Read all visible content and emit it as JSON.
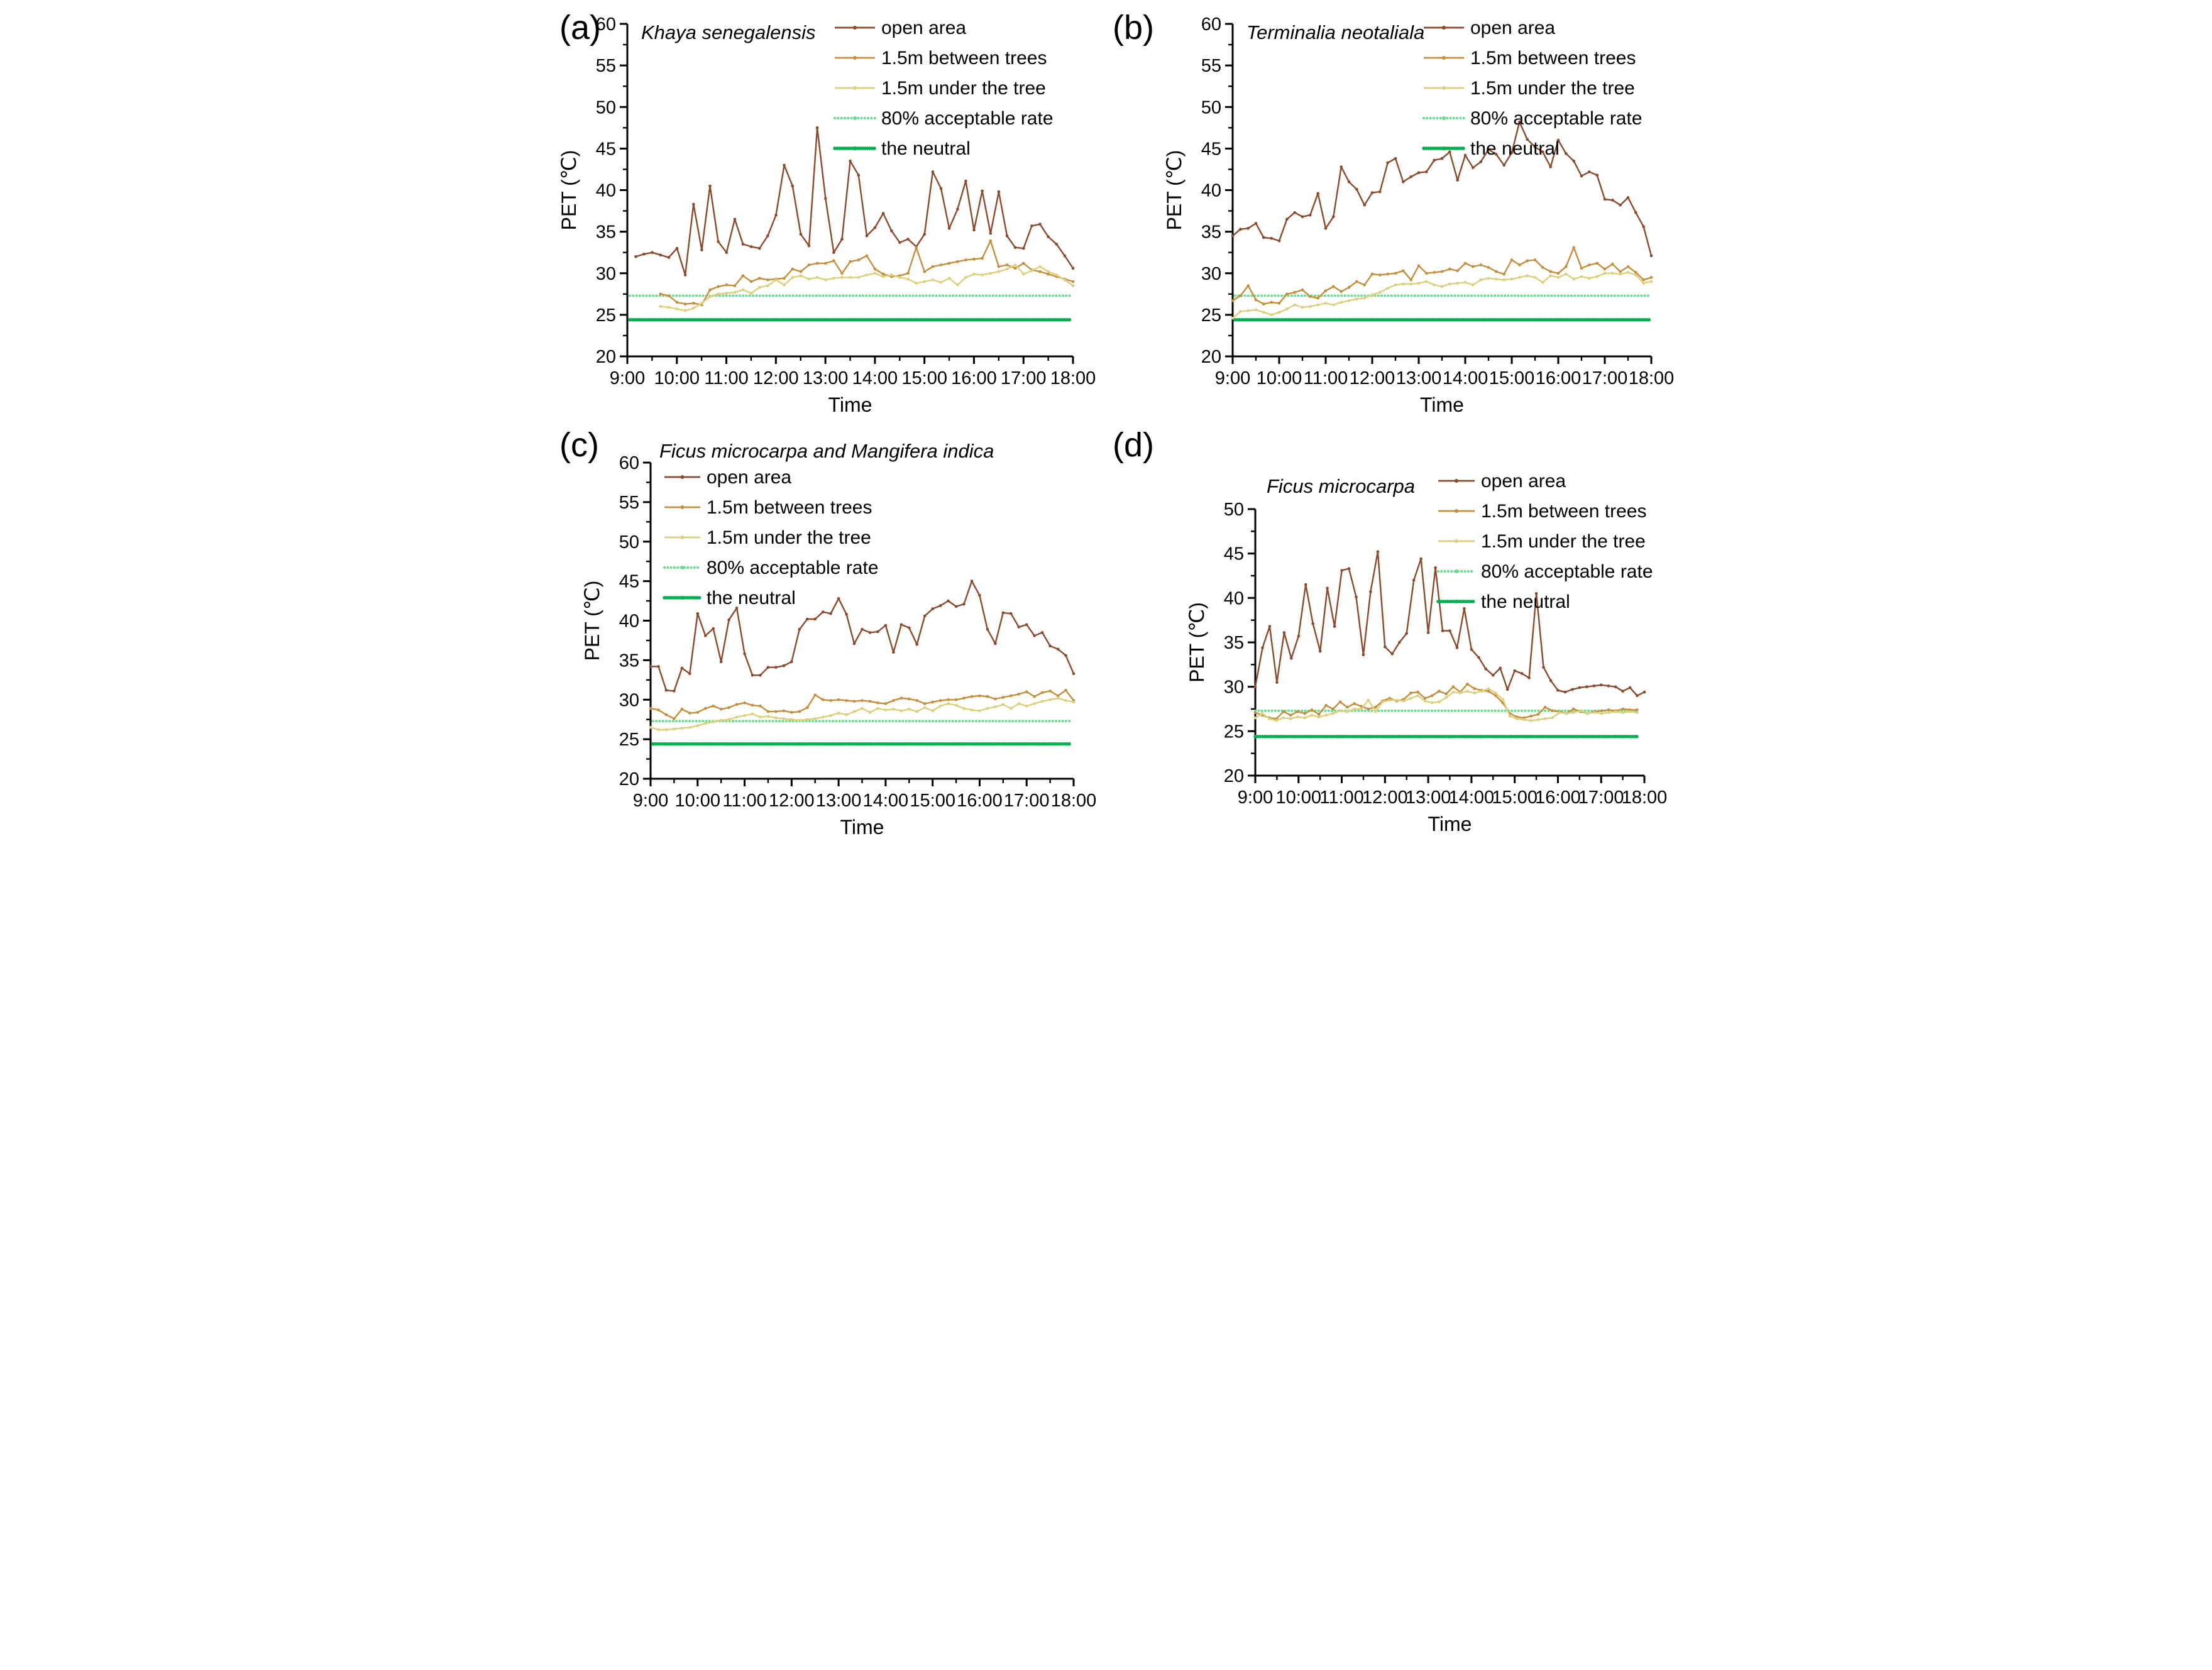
{
  "figure": {
    "background": "#ffffff",
    "axis_color": "#000000",
    "text_color": "#000000"
  },
  "chart_data": [
    {
      "id": "a",
      "panel_label": "(a)",
      "type": "line",
      "title": "Khaya senegalensis",
      "xlabel": "Time",
      "ylabel": "PET (℃)",
      "ylim": [
        20,
        60
      ],
      "ytick_step": 5,
      "yminor_step": 2.5,
      "xlim": [
        9,
        18
      ],
      "xtick_labels": [
        "9:00",
        "10:00",
        "11:00",
        "12:00",
        "13:00",
        "14:00",
        "15:00",
        "16:00",
        "17:00",
        "18:00"
      ],
      "legend_position": "inside-top-center",
      "legend": [
        "open area",
        "1.5m between trees",
        "1.5m under the tree",
        "80% acceptable rate",
        "the neutral"
      ],
      "series": [
        {
          "name": "open area",
          "color": "#8B4A2B",
          "x_start": 9.17,
          "x_end": 18.0,
          "values": [
            32.0,
            32.3,
            32.5,
            32.2,
            31.9,
            33.0,
            29.8,
            38.3,
            32.8,
            40.5,
            33.8,
            32.5,
            36.5,
            33.5,
            33.2,
            33.0,
            34.5,
            37.0,
            43.0,
            40.5,
            34.7,
            33.3,
            47.5,
            39.0,
            32.5,
            34.1,
            43.5,
            41.8,
            34.5,
            35.5,
            37.2,
            35.1,
            33.7,
            34.1,
            33.2,
            34.7,
            42.2,
            40.2,
            35.4,
            37.7,
            41.1,
            35.2,
            39.9,
            34.8,
            39.8,
            34.5,
            33.1,
            33.0,
            35.7,
            35.9,
            34.4,
            33.5,
            32.1,
            30.6
          ]
        },
        {
          "name": "1.5m between trees",
          "color": "#C48E3C",
          "x_start": 9.67,
          "x_end": 18.0,
          "values": [
            27.5,
            27.3,
            26.5,
            26.3,
            26.4,
            26.2,
            28.0,
            28.4,
            28.6,
            28.5,
            29.7,
            29.0,
            29.4,
            29.2,
            29.3,
            29.4,
            30.5,
            30.2,
            31.0,
            31.2,
            31.2,
            31.5,
            30.0,
            31.4,
            31.6,
            32.1,
            30.5,
            29.9,
            29.6,
            29.7,
            30.0,
            33.1,
            30.2,
            30.8,
            31.0,
            31.2,
            31.4,
            31.6,
            31.7,
            31.8,
            33.9,
            30.8,
            31.0,
            30.6,
            31.2,
            30.4,
            30.2,
            29.9,
            29.6,
            29.3,
            29.0
          ]
        },
        {
          "name": "1.5m under the tree",
          "color": "#DCCF7E",
          "x_start": 9.67,
          "x_end": 18.0,
          "values": [
            26.0,
            25.9,
            25.7,
            25.5,
            25.8,
            26.4,
            27.2,
            27.5,
            27.6,
            27.7,
            28.0,
            27.6,
            28.3,
            28.5,
            29.2,
            28.6,
            29.5,
            29.7,
            29.3,
            29.5,
            29.2,
            29.4,
            29.5,
            29.5,
            29.5,
            29.8,
            30.0,
            29.6,
            29.8,
            29.5,
            29.3,
            28.8,
            29.0,
            29.2,
            28.9,
            29.4,
            28.6,
            29.5,
            29.9,
            29.8,
            30.0,
            30.2,
            30.5,
            31.0,
            29.9,
            30.3,
            30.8,
            30.2,
            29.8,
            29.2,
            28.5
          ]
        }
      ],
      "ref_lines": [
        {
          "name": "80% acceptable rate",
          "color": "#68DE8F",
          "value": 27.3,
          "style": "dotted",
          "width": 4,
          "x_start": 9.05,
          "x_end": 17.95
        },
        {
          "name": "the neutral",
          "color": "#00B050",
          "value": 24.4,
          "style": "dotted",
          "width": 5.5,
          "x_start": 9.05,
          "x_end": 17.95
        }
      ]
    },
    {
      "id": "b",
      "panel_label": "(b)",
      "type": "line",
      "title": "Terminalia neotaliala",
      "xlabel": "Time",
      "ylabel": "PET (℃)",
      "ylim": [
        20,
        60
      ],
      "ytick_step": 5,
      "yminor_step": 2.5,
      "xlim": [
        9,
        18
      ],
      "xtick_labels": [
        "9:00",
        "10:00",
        "11:00",
        "12:00",
        "13:00",
        "14:00",
        "15:00",
        "16:00",
        "17:00",
        "18:00"
      ],
      "legend_position": "inside-top-right",
      "legend": [
        "open area",
        "1.5m between trees",
        "1.5m under the tree",
        "80% acceptable rate",
        "the neutral"
      ],
      "series": [
        {
          "name": "open area",
          "color": "#8B4A2B",
          "x_start": 9.0,
          "x_end": 18.0,
          "values": [
            34.5,
            35.3,
            35.4,
            36.0,
            34.3,
            34.2,
            33.9,
            36.5,
            37.3,
            36.8,
            37.0,
            39.6,
            35.4,
            36.8,
            42.8,
            41.0,
            40.1,
            38.2,
            39.7,
            39.8,
            43.3,
            43.8,
            41.0,
            41.6,
            42.1,
            42.2,
            43.6,
            43.8,
            44.6,
            41.2,
            44.2,
            42.7,
            43.4,
            44.9,
            44.3,
            43.0,
            44.5,
            48.2,
            46.1,
            45.2,
            44.6,
            42.8,
            46.0,
            44.4,
            43.5,
            41.7,
            42.2,
            41.8,
            38.9,
            38.8,
            38.2,
            39.1,
            37.3,
            35.6,
            32.1
          ]
        },
        {
          "name": "1.5m between trees",
          "color": "#C48E3C",
          "x_start": 9.0,
          "x_end": 18.0,
          "values": [
            26.7,
            27.3,
            28.5,
            26.8,
            26.3,
            26.5,
            26.4,
            27.5,
            27.7,
            28.0,
            27.2,
            27.0,
            27.9,
            28.4,
            27.8,
            28.3,
            29.0,
            28.6,
            29.9,
            29.8,
            29.9,
            30.0,
            30.3,
            29.2,
            30.9,
            30.0,
            30.1,
            30.2,
            30.5,
            30.3,
            31.2,
            30.8,
            31.0,
            30.7,
            30.2,
            29.9,
            31.6,
            31.0,
            31.5,
            31.6,
            30.7,
            30.2,
            30.0,
            30.8,
            33.1,
            30.6,
            31.0,
            31.2,
            30.5,
            31.1,
            30.2,
            30.8,
            30.1,
            29.2,
            29.5
          ]
        },
        {
          "name": "1.5m under the tree",
          "color": "#DCCF7E",
          "x_start": 9.0,
          "x_end": 18.0,
          "values": [
            24.6,
            25.4,
            25.5,
            25.6,
            25.3,
            25.0,
            25.3,
            25.7,
            26.2,
            25.9,
            26.0,
            26.2,
            26.4,
            26.2,
            26.5,
            26.7,
            26.9,
            27.0,
            27.4,
            27.7,
            28.2,
            28.6,
            28.7,
            28.7,
            28.8,
            29.0,
            28.6,
            28.4,
            28.7,
            28.8,
            28.9,
            28.6,
            29.2,
            29.4,
            29.3,
            29.2,
            29.3,
            29.5,
            29.7,
            29.5,
            28.9,
            29.7,
            29.5,
            29.9,
            29.3,
            29.6,
            29.4,
            29.6,
            30.0,
            30.0,
            29.9,
            30.1,
            29.8,
            28.8,
            29.0
          ]
        }
      ],
      "ref_lines": [
        {
          "name": "80% acceptable rate",
          "color": "#68DE8F",
          "value": 27.3,
          "style": "dotted",
          "width": 4,
          "x_start": 9.05,
          "x_end": 17.95
        },
        {
          "name": "the neutral",
          "color": "#00B050",
          "value": 24.4,
          "style": "dotted",
          "width": 5.5,
          "x_start": 9.05,
          "x_end": 17.95
        }
      ]
    },
    {
      "id": "c",
      "panel_label": "(c)",
      "type": "line",
      "title": "Ficus microcarpa and Mangifera indica",
      "xlabel": "Time",
      "ylabel": "PET (℃)",
      "ylim": [
        20,
        60
      ],
      "ytick_step": 5,
      "yminor_step": 2.5,
      "xlim": [
        9,
        18
      ],
      "xtick_labels": [
        "9:00",
        "10:00",
        "11:00",
        "12:00",
        "13:00",
        "14:00",
        "15:00",
        "16:00",
        "17:00",
        "18:00"
      ],
      "legend_position": "inside-top-left",
      "legend": [
        "open area",
        "1.5m between trees",
        "1.5m under the tree",
        "80% acceptable rate",
        "the neutral"
      ],
      "series": [
        {
          "name": "open area",
          "color": "#8B4A2B",
          "x_start": 9.0,
          "x_end": 18.0,
          "values": [
            34.2,
            34.2,
            31.2,
            31.1,
            34.0,
            33.3,
            40.9,
            38.1,
            39.0,
            34.8,
            40.1,
            41.6,
            35.8,
            33.1,
            33.1,
            34.1,
            34.1,
            34.3,
            34.8,
            38.9,
            40.2,
            40.2,
            41.1,
            40.9,
            42.8,
            40.8,
            37.1,
            38.9,
            38.5,
            38.6,
            39.4,
            36.0,
            39.5,
            39.1,
            37.0,
            40.6,
            41.5,
            41.9,
            42.5,
            41.8,
            42.1,
            45.0,
            43.2,
            38.9,
            37.1,
            41.0,
            40.9,
            39.2,
            39.5,
            38.1,
            38.5,
            36.8,
            36.4,
            35.6,
            33.3
          ]
        },
        {
          "name": "1.5m between trees",
          "color": "#C48E3C",
          "x_start": 9.0,
          "x_end": 18.0,
          "values": [
            28.9,
            28.7,
            28.1,
            27.6,
            28.8,
            28.3,
            28.4,
            28.9,
            29.2,
            28.8,
            29.0,
            29.4,
            29.6,
            29.3,
            29.2,
            28.5,
            28.5,
            28.6,
            28.4,
            28.5,
            29.0,
            30.6,
            30.0,
            29.9,
            30.0,
            29.9,
            29.8,
            29.9,
            29.8,
            29.6,
            29.5,
            29.9,
            30.2,
            30.1,
            29.9,
            29.5,
            29.7,
            29.9,
            30.0,
            30.0,
            30.2,
            30.4,
            30.5,
            30.4,
            30.1,
            30.3,
            30.5,
            30.7,
            31.0,
            30.4,
            30.9,
            31.1,
            30.5,
            31.2,
            29.9
          ]
        },
        {
          "name": "1.5m under the tree",
          "color": "#DCCF7E",
          "x_start": 9.0,
          "x_end": 18.0,
          "values": [
            26.5,
            26.2,
            26.2,
            26.3,
            26.4,
            26.5,
            26.7,
            27.0,
            27.2,
            27.4,
            27.5,
            27.8,
            28.0,
            28.2,
            27.8,
            27.9,
            27.7,
            27.6,
            27.5,
            27.4,
            27.5,
            27.6,
            27.8,
            28.0,
            28.3,
            28.1,
            28.5,
            28.9,
            28.4,
            28.9,
            28.7,
            28.8,
            28.6,
            28.8,
            28.5,
            29.0,
            28.6,
            29.2,
            29.5,
            29.3,
            28.9,
            28.7,
            28.6,
            28.9,
            29.1,
            29.4,
            28.9,
            29.5,
            29.2,
            29.5,
            29.8,
            30.0,
            30.2,
            29.9,
            29.7
          ]
        }
      ],
      "ref_lines": [
        {
          "name": "80% acceptable rate",
          "color": "#68DE8F",
          "value": 27.3,
          "style": "dotted",
          "width": 4,
          "x_start": 9.05,
          "x_end": 17.95
        },
        {
          "name": "the neutral",
          "color": "#00B050",
          "value": 24.4,
          "style": "dotted",
          "width": 5.5,
          "x_start": 9.05,
          "x_end": 17.95
        }
      ]
    },
    {
      "id": "d",
      "panel_label": "(d)",
      "type": "line",
      "title": "Ficus microcarpa",
      "xlabel": "Time",
      "ylabel": "PET (℃)",
      "ylim": [
        20,
        50
      ],
      "ytick_step": 5,
      "yminor_step": 2.5,
      "xlim": [
        9,
        18
      ],
      "xtick_labels": [
        "9:00",
        "10:00",
        "11:00",
        "12:00",
        "13:00",
        "14:00",
        "15:00",
        "16:00",
        "17:00",
        "18:00"
      ],
      "legend_position": "inside-top-right",
      "legend": [
        "open area",
        "1.5m between trees",
        "1.5m under the tree",
        "80% acceptable rate",
        "the neutral"
      ],
      "series": [
        {
          "name": "open area",
          "color": "#8B4A2B",
          "x_start": 9.0,
          "x_end": 18.0,
          "values": [
            30.0,
            34.4,
            36.8,
            30.5,
            36.1,
            33.2,
            35.7,
            41.5,
            37.1,
            34.0,
            41.1,
            36.8,
            43.1,
            43.3,
            40.1,
            33.6,
            40.7,
            45.2,
            34.5,
            33.7,
            35.0,
            36.0,
            42.0,
            44.4,
            36.1,
            43.4,
            36.3,
            36.3,
            34.4,
            38.8,
            34.2,
            33.3,
            32.0,
            31.3,
            32.1,
            29.7,
            31.8,
            31.5,
            31.0,
            40.5,
            32.2,
            30.7,
            29.6,
            29.4,
            29.7,
            29.9,
            30.0,
            30.1,
            30.2,
            30.1,
            30.0,
            29.5,
            29.9,
            29.0,
            29.4
          ]
        },
        {
          "name": "1.5m between trees",
          "color": "#C48E3C",
          "x_start": 9.0,
          "x_end": 17.83,
          "values": [
            27.1,
            26.8,
            26.5,
            26.4,
            27.2,
            26.8,
            27.2,
            27.0,
            27.4,
            26.9,
            27.9,
            27.5,
            28.3,
            27.7,
            28.1,
            27.8,
            27.5,
            27.7,
            28.4,
            28.7,
            28.4,
            28.6,
            29.3,
            29.4,
            28.7,
            29.0,
            29.5,
            29.2,
            30.0,
            29.4,
            30.3,
            29.8,
            29.6,
            29.5,
            29.0,
            28.2,
            27.0,
            26.6,
            26.5,
            26.7,
            26.9,
            27.7,
            27.3,
            27.2,
            27.0,
            27.5,
            27.2,
            27.0,
            27.2,
            27.3,
            27.4,
            27.3,
            27.5,
            27.4,
            27.4
          ]
        },
        {
          "name": "1.5m under the tree",
          "color": "#DCCF7E",
          "x_start": 9.0,
          "x_end": 17.83,
          "values": [
            26.5,
            27.0,
            26.4,
            26.2,
            26.5,
            26.4,
            26.6,
            26.5,
            26.8,
            26.6,
            26.8,
            27.0,
            27.3,
            27.2,
            27.5,
            27.5,
            28.5,
            27.2,
            28.3,
            28.5,
            28.5,
            28.4,
            28.7,
            29.0,
            28.4,
            28.2,
            28.3,
            28.8,
            29.4,
            29.3,
            29.5,
            29.3,
            29.5,
            29.8,
            29.3,
            28.6,
            26.7,
            26.4,
            26.3,
            26.2,
            26.3,
            26.4,
            26.5,
            27.1,
            27.0,
            27.1,
            27.3,
            27.0,
            27.1,
            27.0,
            27.1,
            27.2,
            27.1,
            27.2,
            27.1
          ]
        }
      ],
      "ref_lines": [
        {
          "name": "80% acceptable rate",
          "color": "#68DE8F",
          "value": 27.3,
          "style": "dotted",
          "width": 4,
          "x_start": 9.0,
          "x_end": 17.85
        },
        {
          "name": "the neutral",
          "color": "#00B050",
          "value": 24.4,
          "style": "dotted",
          "width": 5.5,
          "x_start": 9.0,
          "x_end": 17.85
        }
      ]
    }
  ]
}
